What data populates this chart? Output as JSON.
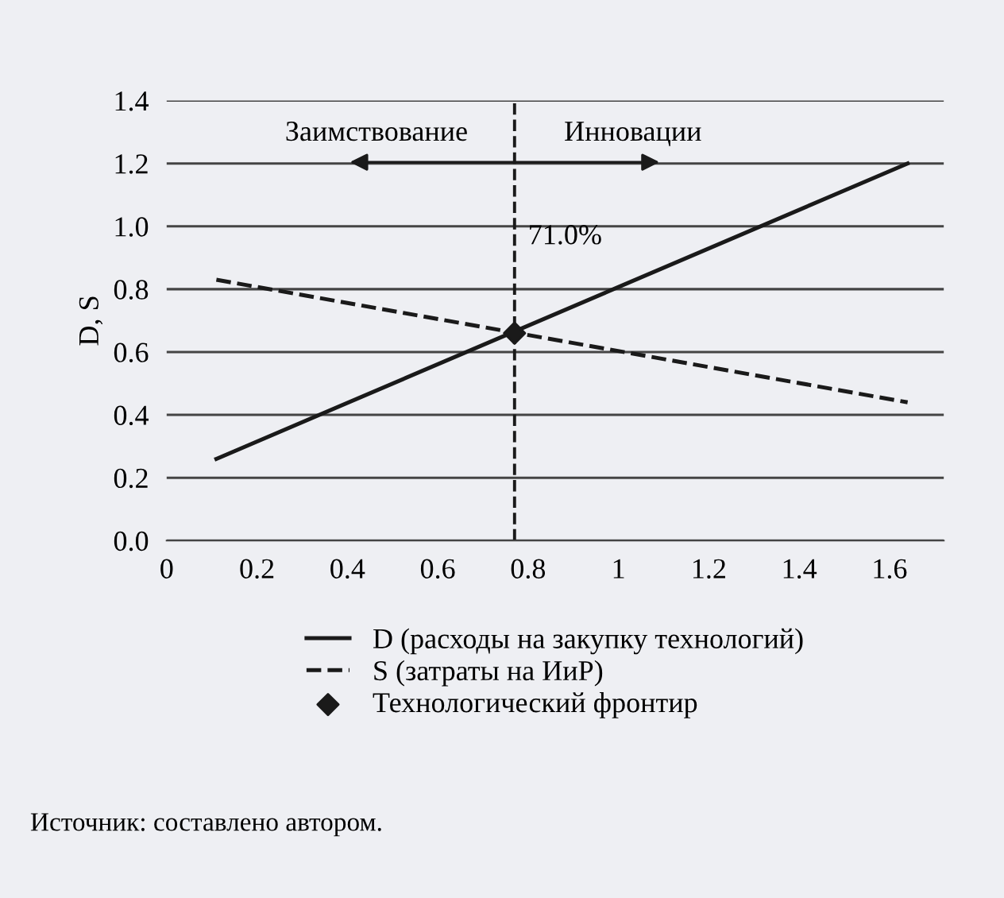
{
  "chart_data": {
    "type": "line",
    "ylabel": "D, S",
    "xlim": [
      0,
      1.72
    ],
    "ylim": [
      0,
      1.4
    ],
    "xticks": [
      0,
      {
        "value": 0.2,
        "label": "0.2"
      },
      {
        "value": 0.4,
        "label": "0.4"
      },
      {
        "value": 0.6,
        "label": "0.6"
      },
      {
        "value": 0.8,
        "label": "0.8"
      },
      1,
      {
        "value": 1.2,
        "label": "1.2"
      },
      {
        "value": 1.4,
        "label": "1.4"
      },
      {
        "value": 1.6,
        "label": "1.6"
      }
    ],
    "yticks": [
      {
        "value": 0,
        "label": "0.0"
      },
      {
        "value": 0.2,
        "label": "0.2"
      },
      {
        "value": 0.4,
        "label": "0.4"
      },
      {
        "value": 0.6,
        "label": "0.6"
      },
      {
        "value": 0.8,
        "label": "0.8"
      },
      {
        "value": 1,
        "label": "1.0"
      },
      {
        "value": 1.2,
        "label": "1.2"
      },
      {
        "value": 1.4,
        "label": "1.4"
      }
    ],
    "grid": "y",
    "legend": "bottom",
    "series": [
      {
        "name": "D (расходы на закупку технологий)",
        "color": "#1a1a1a",
        "x": [
          0.11,
          1.64
        ],
        "values": [
          0.26,
          1.2
        ],
        "line_style": "solid",
        "marker": "none"
      },
      {
        "name": "S (затраты на ИиР)",
        "color": "#1a1a1a",
        "x": [
          0.11,
          1.64
        ],
        "values": [
          0.83,
          0.44
        ],
        "line_style": "dashed",
        "marker": "none"
      },
      {
        "name": "Технологический фронтир",
        "type": "scatter",
        "color": "#1a1a1a",
        "x": [
          0.77
        ],
        "values": [
          0.66
        ],
        "marker": "diamond"
      }
    ],
    "ref_lines": [
      {
        "axis": "x",
        "value": 0.77,
        "line_style": "dashed",
        "color": "#1a1a1a"
      }
    ],
    "annotations": [
      "71.0%",
      "Заимствование",
      "Инновации",
      "Источник: составлено автором."
    ]
  }
}
